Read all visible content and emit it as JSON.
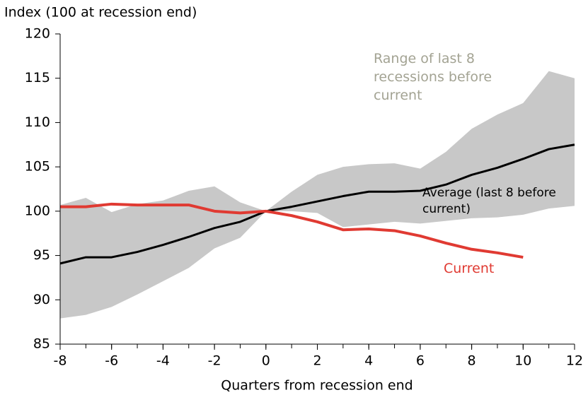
{
  "chart_data": {
    "type": "line",
    "title": "Index (100 at recession end)",
    "x_label": "Quarters from recession end",
    "x": [
      -8,
      -7,
      -6,
      -5,
      -4,
      -3,
      -2,
      -1,
      0,
      1,
      2,
      3,
      4,
      5,
      6,
      7,
      8,
      9,
      10,
      11,
      12
    ],
    "band": {
      "name": "Range of last 8 recessions before current",
      "color": "#c8c8c8",
      "text_color": "#a3a393",
      "upper": [
        100.7,
        101.5,
        99.9,
        100.8,
        101.2,
        102.3,
        102.8,
        101.0,
        100,
        102.2,
        104.1,
        105.0,
        105.3,
        105.4,
        104.8,
        106.7,
        109.3,
        110.9,
        112.2,
        115.8,
        115.0
      ],
      "lower": [
        87.9,
        88.3,
        89.2,
        90.6,
        92.1,
        93.6,
        95.8,
        97.0,
        100,
        100.0,
        99.8,
        98.2,
        98.5,
        98.8,
        98.6,
        98.9,
        99.2,
        99.3,
        99.6,
        100.3,
        100.6
      ]
    },
    "series": [
      {
        "name": "Average (last 8 before current)",
        "color": "#000000",
        "values": [
          94.1,
          94.8,
          94.8,
          95.4,
          96.2,
          97.1,
          98.1,
          98.8,
          100,
          100.5,
          101.1,
          101.7,
          102.2,
          102.2,
          102.3,
          103.0,
          104.1,
          104.9,
          105.9,
          107.0,
          107.5
        ]
      },
      {
        "name": "Current",
        "color": "#e03a32",
        "values": [
          100.5,
          100.5,
          100.8,
          100.7,
          100.7,
          100.7,
          100.0,
          99.8,
          100,
          99.5,
          98.8,
          97.9,
          98.0,
          97.8,
          97.2,
          96.4,
          95.7,
          95.3,
          94.8,
          null,
          null
        ]
      }
    ],
    "xlim": [
      -8,
      12
    ],
    "xticks": [
      -8,
      -6,
      -4,
      -2,
      0,
      2,
      4,
      6,
      8,
      10,
      12
    ],
    "ylim": [
      85,
      120
    ],
    "yticks": [
      85,
      90,
      95,
      100,
      105,
      110,
      115,
      120
    ]
  }
}
